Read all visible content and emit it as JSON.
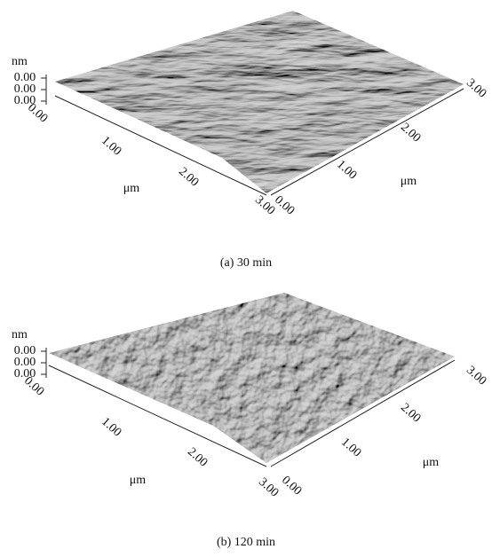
{
  "panels": [
    {
      "z_label": "nm",
      "z_ticks": [
        "0.00",
        "0.00",
        "0.00"
      ],
      "x_ticks": [
        "0.00",
        "1.00",
        "2.00",
        "3.00"
      ],
      "x_label": "μm",
      "y_ticks": [
        "0.00",
        "1.00",
        "2.00",
        "3.00"
      ],
      "y_label": "μm",
      "caption": "(a) 30 min"
    },
    {
      "z_label": "nm",
      "z_ticks": [
        "0.00",
        "0.00",
        "0.00"
      ],
      "x_ticks": [
        "0.00",
        "1.00",
        "2.00",
        "3.00"
      ],
      "x_label": "μm",
      "y_ticks": [
        "0.00",
        "1.00",
        "2.00",
        "3.00"
      ],
      "y_label": "μm",
      "caption": "(b) 120 min"
    }
  ]
}
